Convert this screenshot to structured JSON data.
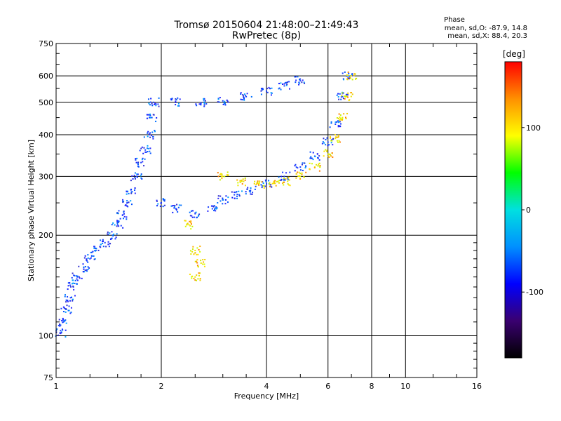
{
  "chart_data": {
    "type": "scatter",
    "title": "Tromsø 20150604 21:48:00–21:49:43",
    "subtitle": "RwPretec (8p)",
    "xlabel": "Frequency [MHz]",
    "ylabel": "Stationary phase Virtual Height [km]",
    "x_scale": "log",
    "y_scale": "log",
    "xlim": [
      1,
      16
    ],
    "ylim": [
      75,
      750
    ],
    "x_ticks": [
      1,
      2,
      4,
      6,
      8,
      10,
      16
    ],
    "y_ticks": [
      75,
      100,
      200,
      300,
      400,
      500,
      600,
      750
    ],
    "grid": true,
    "stats": {
      "title": "Phase",
      "line1": "mean, sd,O: -87.9, 14.8",
      "line2": "mean, sd,X:  88.4, 20.3"
    },
    "colorbar": {
      "label": "[deg]",
      "ticks": [
        100,
        0,
        -100
      ],
      "range": [
        -180,
        180
      ],
      "colors": [
        "#000000",
        "#3a0070",
        "#0000ff",
        "#0090ff",
        "#00e0e0",
        "#00ff00",
        "#ffff00",
        "#ff9000",
        "#ff0000"
      ]
    },
    "series": [
      {
        "phase": -100,
        "color": "#1840ff",
        "points": [
          [
            1.03,
            102
          ],
          [
            1.05,
            110
          ],
          [
            1.07,
            120
          ],
          [
            1.1,
            130
          ],
          [
            1.12,
            140
          ],
          [
            1.15,
            150
          ],
          [
            1.2,
            160
          ],
          [
            1.25,
            170
          ],
          [
            1.3,
            180
          ],
          [
            1.38,
            190
          ],
          [
            1.45,
            200
          ],
          [
            1.5,
            215
          ],
          [
            1.55,
            230
          ],
          [
            1.6,
            250
          ],
          [
            1.65,
            270
          ],
          [
            1.7,
            300
          ],
          [
            1.75,
            330
          ],
          [
            1.8,
            360
          ],
          [
            1.85,
            400
          ],
          [
            1.88,
            450
          ],
          [
            1.9,
            500
          ],
          [
            2.0,
            250
          ],
          [
            2.2,
            240
          ],
          [
            2.5,
            232
          ],
          [
            2.8,
            240
          ],
          [
            3.0,
            255
          ],
          [
            3.3,
            265
          ],
          [
            3.6,
            272
          ],
          [
            4.0,
            285
          ],
          [
            4.5,
            300
          ],
          [
            5.0,
            320
          ],
          [
            5.5,
            345
          ],
          [
            6.0,
            380
          ],
          [
            6.3,
            430
          ],
          [
            6.6,
            520
          ],
          [
            6.8,
            600
          ],
          [
            2.2,
            500
          ],
          [
            2.6,
            498
          ],
          [
            3.0,
            505
          ],
          [
            3.5,
            520
          ],
          [
            4.0,
            540
          ],
          [
            4.5,
            560
          ],
          [
            5.0,
            580
          ]
        ]
      },
      {
        "phase": 100,
        "color": "#e8e800",
        "points": [
          [
            3.0,
            300
          ],
          [
            3.4,
            290
          ],
          [
            3.8,
            284
          ],
          [
            4.2,
            286
          ],
          [
            4.6,
            290
          ],
          [
            5.0,
            300
          ],
          [
            5.5,
            320
          ],
          [
            6.0,
            350
          ],
          [
            6.3,
            390
          ],
          [
            6.6,
            450
          ],
          [
            6.8,
            520
          ],
          [
            7.0,
            600
          ],
          [
            2.5,
            180
          ],
          [
            2.6,
            165
          ],
          [
            2.5,
            150
          ],
          [
            2.4,
            215
          ]
        ]
      }
    ]
  }
}
